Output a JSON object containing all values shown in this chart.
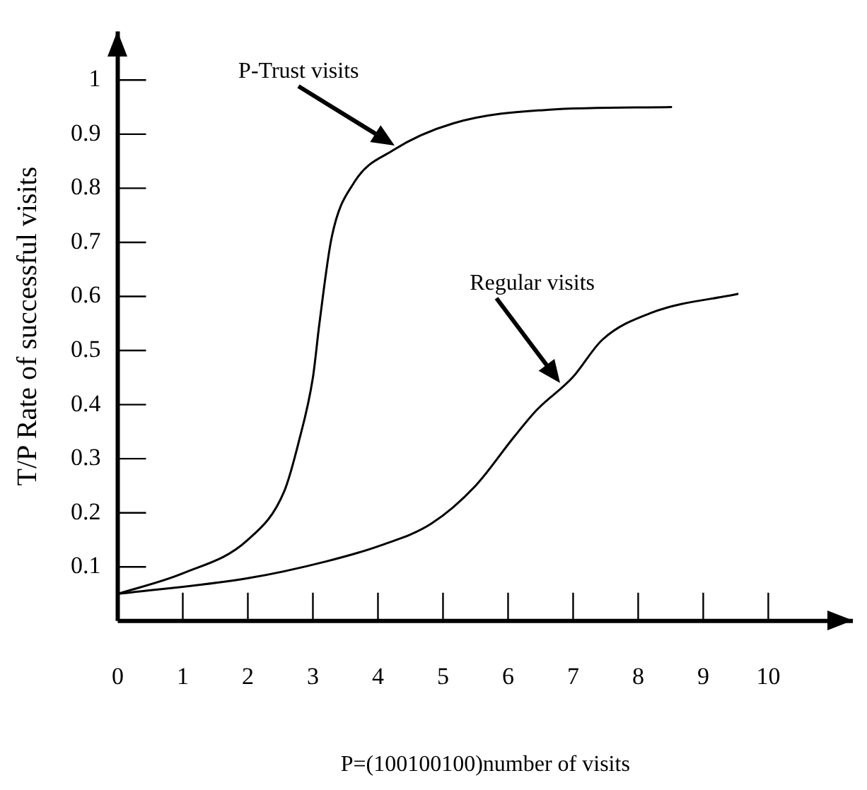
{
  "chart_data": {
    "type": "line",
    "xlabel": "P=(100100100)number of visits",
    "ylabel": "T/P Rate of successful visits",
    "xlim": [
      0,
      11.3
    ],
    "ylim": [
      0,
      1.09
    ],
    "xticks": [
      0,
      1,
      2,
      3,
      4,
      5,
      6,
      7,
      8,
      9,
      10
    ],
    "yticks": [
      0.1,
      0.2,
      0.3,
      0.4,
      0.5,
      0.6,
      0.7,
      0.8,
      0.9,
      1
    ],
    "grid": false,
    "legend": false,
    "marker": "none",
    "line_style": "solid",
    "series": [
      {
        "name": "P-Trust visits",
        "color": "#000000",
        "x": [
          0,
          1,
          2,
          2.56,
          2.78,
          3,
          3.1,
          3.29,
          3.63,
          4.23,
          5.16,
          6.6,
          8.52
        ],
        "values": [
          0.05,
          0.088,
          0.15,
          0.24,
          0.33,
          0.45,
          0.55,
          0.71,
          0.81,
          0.87,
          0.92,
          0.945,
          0.95
        ]
      },
      {
        "name": "Regular visits",
        "color": "#000000",
        "x": [
          0,
          2,
          3.2,
          4.05,
          4.82,
          5.5,
          6.09,
          6.44,
          6.99,
          7.45,
          8.21,
          9.54
        ],
        "values": [
          0.05,
          0.079,
          0.11,
          0.14,
          0.18,
          0.25,
          0.34,
          0.39,
          0.45,
          0.52,
          0.57,
          0.605
        ]
      }
    ]
  }
}
